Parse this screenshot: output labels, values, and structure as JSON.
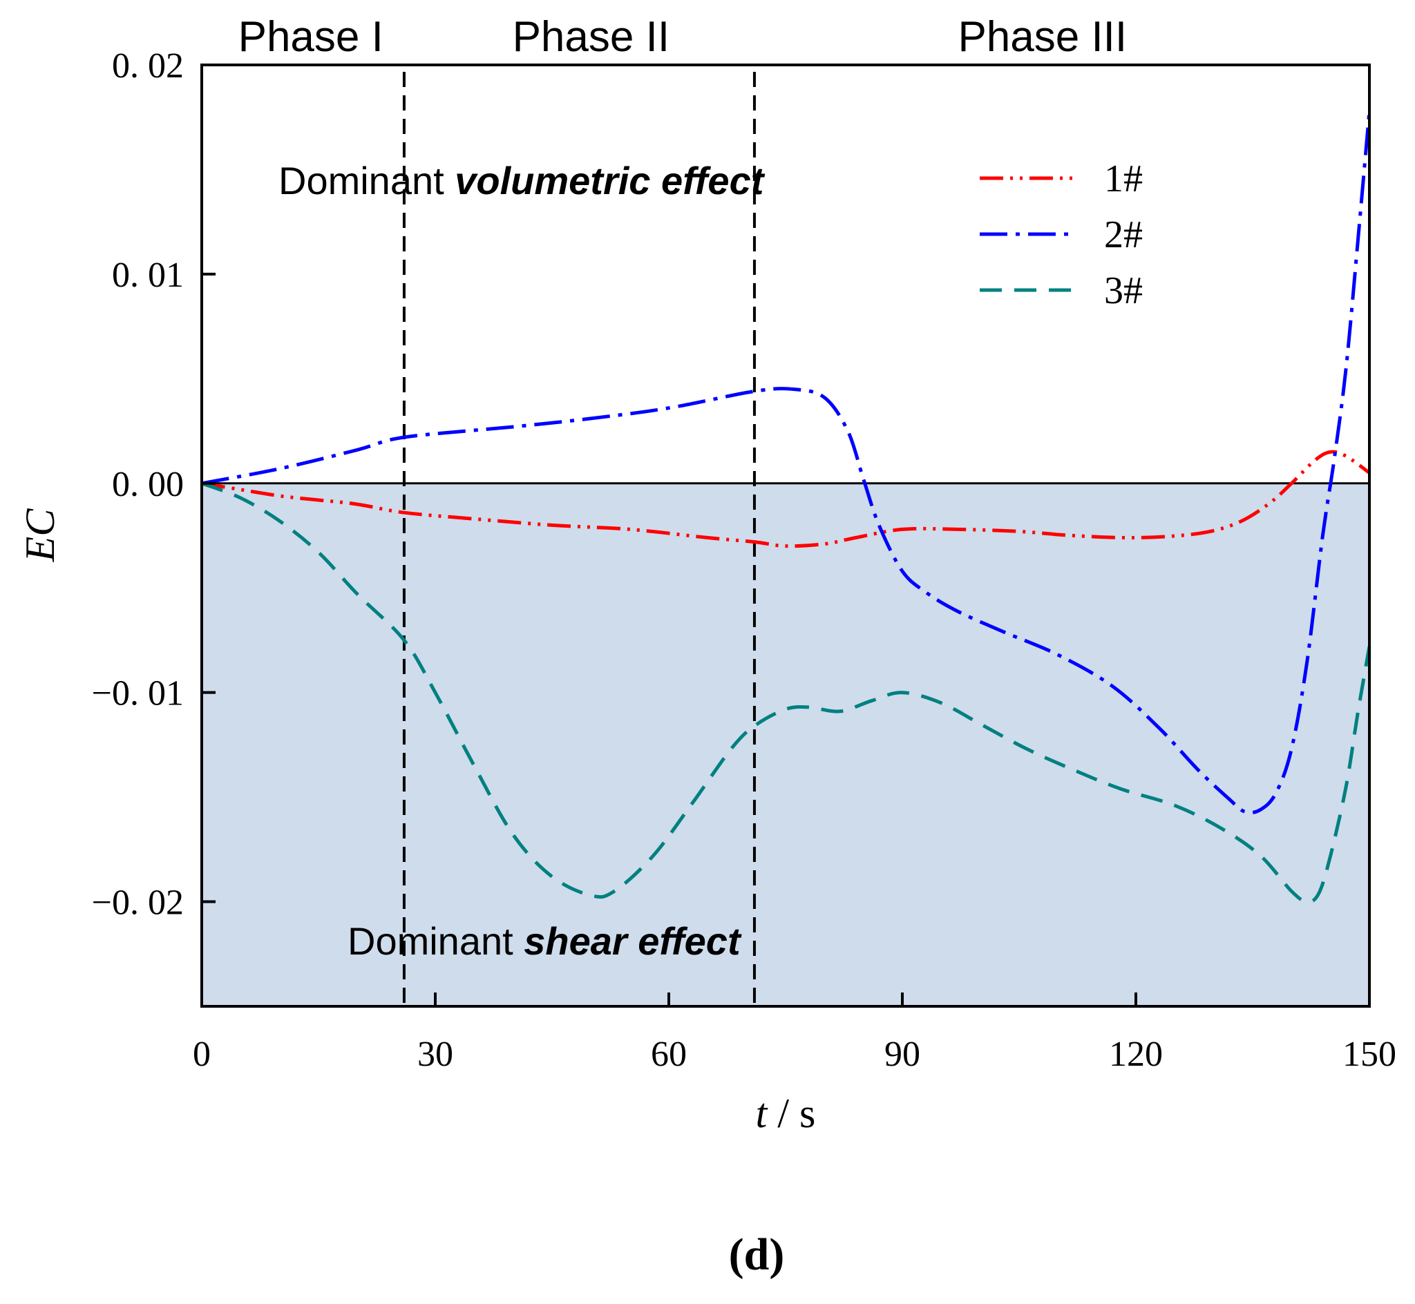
{
  "chart_data": {
    "type": "line",
    "xlabel_var": "t",
    "xlabel_sep": " / ",
    "xlabel_unit": "s",
    "ylabel": "EC",
    "xlim": [
      0,
      150
    ],
    "ylim": [
      -0.025,
      0.02
    ],
    "xticks": [
      0,
      30,
      60,
      90,
      120,
      150
    ],
    "xtick_labels": [
      "0",
      "30",
      "60",
      "90",
      "120",
      "150"
    ],
    "yticks": [
      0.02,
      0.01,
      0.0,
      -0.01,
      -0.02
    ],
    "ytick_labels": [
      "0. 02",
      "0. 01",
      "0. 00",
      "−0. 01",
      "−0. 02"
    ],
    "phase_boundaries": [
      26,
      71
    ],
    "phases": [
      {
        "label": "Phase I",
        "center": 14
      },
      {
        "label": "Phase II",
        "center": 50
      },
      {
        "label": "Phase III",
        "center": 108
      }
    ],
    "regions": {
      "positive_label_prefix": "Dominant ",
      "positive_label_emph": "volumetric effect",
      "negative_label_prefix": "Dominant ",
      "negative_label_emph": "shear effect",
      "negative_fill": "#cedcec"
    },
    "legend": {
      "placement": "top-right"
    },
    "series": [
      {
        "name": "1#",
        "color": "#ff0000",
        "dash": "dashdotdot",
        "points": [
          [
            0,
            0
          ],
          [
            5,
            -0.0003
          ],
          [
            10,
            -0.0006
          ],
          [
            15,
            -0.0008
          ],
          [
            20,
            -0.001
          ],
          [
            26,
            -0.0014
          ],
          [
            35,
            -0.0017
          ],
          [
            45,
            -0.002
          ],
          [
            55,
            -0.0022
          ],
          [
            65,
            -0.0026
          ],
          [
            71,
            -0.0028
          ],
          [
            75,
            -0.003
          ],
          [
            80,
            -0.0029
          ],
          [
            84,
            -0.0026
          ],
          [
            90,
            -0.0022
          ],
          [
            97,
            -0.0022
          ],
          [
            105,
            -0.0023
          ],
          [
            112,
            -0.0025
          ],
          [
            120,
            -0.0026
          ],
          [
            128,
            -0.0024
          ],
          [
            133,
            -0.0019
          ],
          [
            137,
            -0.001
          ],
          [
            140,
            0.0
          ],
          [
            143,
            0.0011
          ],
          [
            145,
            0.0015
          ],
          [
            147,
            0.0013
          ],
          [
            150,
            0.0005
          ]
        ]
      },
      {
        "name": "2#",
        "color": "#0000ff",
        "dash": "dashdot",
        "points": [
          [
            0,
            0
          ],
          [
            10,
            0.0007
          ],
          [
            20,
            0.0016
          ],
          [
            26,
            0.0022
          ],
          [
            40,
            0.0027
          ],
          [
            50,
            0.0031
          ],
          [
            60,
            0.0036
          ],
          [
            71,
            0.0044
          ],
          [
            76,
            0.0045
          ],
          [
            80,
            0.0041
          ],
          [
            83,
            0.0025
          ],
          [
            85,
            0.0002
          ],
          [
            87,
            -0.002
          ],
          [
            90,
            -0.0042
          ],
          [
            93,
            -0.0052
          ],
          [
            97,
            -0.0061
          ],
          [
            103,
            -0.0071
          ],
          [
            110,
            -0.0082
          ],
          [
            117,
            -0.0097
          ],
          [
            123,
            -0.0117
          ],
          [
            128,
            -0.0137
          ],
          [
            132,
            -0.0151
          ],
          [
            134,
            -0.0157
          ],
          [
            136,
            -0.0156
          ],
          [
            138,
            -0.0148
          ],
          [
            140,
            -0.0127
          ],
          [
            142,
            -0.0085
          ],
          [
            144,
            -0.0025
          ],
          [
            145.5,
            0.0012
          ],
          [
            147,
            0.0055
          ],
          [
            148.5,
            0.0115
          ],
          [
            150,
            0.0178
          ]
        ]
      },
      {
        "name": "3#",
        "color": "#008080",
        "dash": "dashed",
        "points": [
          [
            0,
            0
          ],
          [
            5,
            -0.0007
          ],
          [
            10,
            -0.0018
          ],
          [
            15,
            -0.0033
          ],
          [
            20,
            -0.0053
          ],
          [
            26,
            -0.0075
          ],
          [
            30,
            -0.01
          ],
          [
            35,
            -0.0135
          ],
          [
            40,
            -0.0168
          ],
          [
            45,
            -0.0188
          ],
          [
            50,
            -0.0197
          ],
          [
            53,
            -0.0195
          ],
          [
            58,
            -0.0178
          ],
          [
            63,
            -0.0153
          ],
          [
            68,
            -0.0127
          ],
          [
            71,
            -0.0116
          ],
          [
            75,
            -0.0108
          ],
          [
            78,
            -0.0107
          ],
          [
            82,
            -0.0109
          ],
          [
            86,
            -0.0104
          ],
          [
            90,
            -0.01
          ],
          [
            95,
            -0.0105
          ],
          [
            100,
            -0.0115
          ],
          [
            106,
            -0.0127
          ],
          [
            112,
            -0.0137
          ],
          [
            118,
            -0.0146
          ],
          [
            125,
            -0.0154
          ],
          [
            131,
            -0.0165
          ],
          [
            136,
            -0.0178
          ],
          [
            140,
            -0.0195
          ],
          [
            142,
            -0.02
          ],
          [
            143.5,
            -0.0196
          ],
          [
            145,
            -0.0178
          ],
          [
            147,
            -0.0145
          ],
          [
            148.5,
            -0.011
          ],
          [
            150,
            -0.0078
          ]
        ]
      }
    ]
  },
  "panel_label": "(d)"
}
